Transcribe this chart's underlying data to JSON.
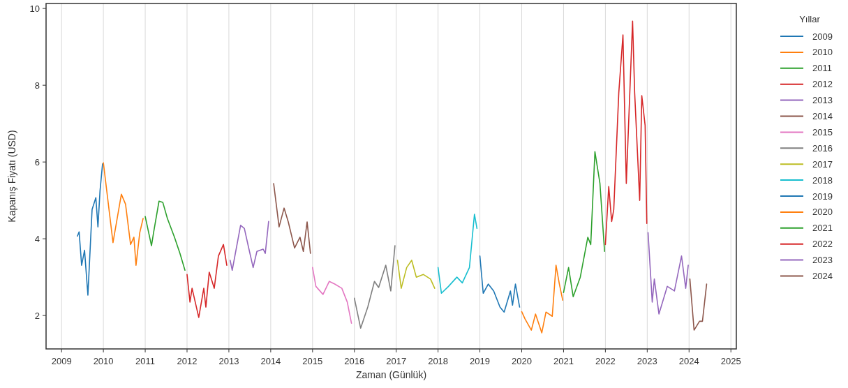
{
  "chart_data": {
    "type": "line",
    "xlabel": "Zaman (Günlük)",
    "ylabel": "Kapanış Fiyatı (USD)",
    "legend_title": "Yıllar",
    "legend": "right",
    "grid": "x",
    "xlim": [
      2008.63,
      2025.13
    ],
    "xticks": [
      2009,
      2010,
      2011,
      2012,
      2013,
      2014,
      2015,
      2016,
      2017,
      2018,
      2019,
      2020,
      2021,
      2022,
      2023,
      2024,
      2025
    ],
    "ylim": [
      1.13,
      10.13
    ],
    "yticks": [
      2,
      4,
      6,
      8,
      10
    ],
    "series": [
      {
        "name": "2009",
        "color": "#1f77b4",
        "x": [
          2009.38,
          2009.42,
          2009.48,
          2009.55,
          2009.63,
          2009.73,
          2009.82,
          2009.87,
          2009.92,
          2009.98
        ],
        "values": [
          4.07,
          4.18,
          3.31,
          3.7,
          2.53,
          4.76,
          5.07,
          4.31,
          5.25,
          5.95
        ]
      },
      {
        "name": "2010",
        "color": "#ff7f0e",
        "x": [
          2010.0,
          2010.23,
          2010.43,
          2010.53,
          2010.65,
          2010.73,
          2010.78,
          2010.87,
          2010.95
        ],
        "values": [
          5.98,
          3.9,
          5.16,
          4.9,
          3.85,
          4.04,
          3.31,
          4.16,
          4.53
        ]
      },
      {
        "name": "2011",
        "color": "#2ca02c",
        "x": [
          2011.0,
          2011.15,
          2011.2,
          2011.33,
          2011.42,
          2011.53,
          2011.7,
          2011.83,
          2011.95
        ],
        "values": [
          4.58,
          3.82,
          4.16,
          4.98,
          4.95,
          4.53,
          4.04,
          3.62,
          3.18
        ]
      },
      {
        "name": "2012",
        "color": "#d62728",
        "x": [
          2012.0,
          2012.07,
          2012.12,
          2012.28,
          2012.4,
          2012.45,
          2012.53,
          2012.65,
          2012.75,
          2012.87,
          2012.95
        ],
        "values": [
          3.07,
          2.35,
          2.71,
          1.95,
          2.71,
          2.22,
          3.13,
          2.71,
          3.55,
          3.85,
          3.31
        ]
      },
      {
        "name": "2013",
        "color": "#9467bd",
        "x": [
          2013.03,
          2013.08,
          2013.28,
          2013.37,
          2013.48,
          2013.58,
          2013.67,
          2013.82,
          2013.87,
          2013.95
        ],
        "values": [
          3.44,
          3.18,
          4.35,
          4.27,
          3.73,
          3.25,
          3.67,
          3.73,
          3.62,
          4.45
        ]
      },
      {
        "name": "2014",
        "color": "#8c564b",
        "x": [
          2014.07,
          2014.2,
          2014.32,
          2014.42,
          2014.57,
          2014.7,
          2014.78,
          2014.87,
          2014.95
        ],
        "values": [
          5.44,
          4.31,
          4.8,
          4.44,
          3.76,
          4.04,
          3.67,
          4.44,
          3.62
        ]
      },
      {
        "name": "2015",
        "color": "#e377c2",
        "x": [
          2015.0,
          2015.08,
          2015.25,
          2015.4,
          2015.53,
          2015.7,
          2015.83,
          2015.93
        ],
        "values": [
          3.25,
          2.76,
          2.55,
          2.89,
          2.82,
          2.71,
          2.35,
          1.8
        ]
      },
      {
        "name": "2016",
        "color": "#7f7f7f",
        "x": [
          2016.0,
          2016.15,
          2016.32,
          2016.48,
          2016.58,
          2016.75,
          2016.87,
          2016.97
        ],
        "values": [
          2.45,
          1.67,
          2.22,
          2.89,
          2.73,
          3.31,
          2.64,
          3.82
        ]
      },
      {
        "name": "2017",
        "color": "#bcbd22",
        "x": [
          2017.03,
          2017.12,
          2017.25,
          2017.37,
          2017.48,
          2017.65,
          2017.82,
          2017.92
        ],
        "values": [
          3.44,
          2.71,
          3.25,
          3.44,
          3.0,
          3.07,
          2.95,
          2.71
        ]
      },
      {
        "name": "2018",
        "color": "#17becf",
        "x": [
          2018.0,
          2018.08,
          2018.25,
          2018.45,
          2018.58,
          2018.75,
          2018.87,
          2018.93
        ],
        "values": [
          3.25,
          2.58,
          2.76,
          3.0,
          2.85,
          3.25,
          4.64,
          4.27
        ]
      },
      {
        "name": "2019",
        "color": "#1f77b4",
        "x": [
          2019.0,
          2019.08,
          2019.2,
          2019.33,
          2019.48,
          2019.58,
          2019.73,
          2019.78,
          2019.85,
          2019.95
        ],
        "values": [
          3.55,
          2.58,
          2.82,
          2.64,
          2.22,
          2.09,
          2.64,
          2.27,
          2.82,
          2.22
        ]
      },
      {
        "name": "2020",
        "color": "#ff7f0e",
        "x": [
          2020.0,
          2020.08,
          2020.23,
          2020.33,
          2020.48,
          2020.58,
          2020.73,
          2020.82,
          2020.9,
          2020.98
        ],
        "values": [
          2.1,
          1.91,
          1.62,
          2.04,
          1.55,
          2.09,
          1.98,
          3.31,
          2.82,
          2.4
        ]
      },
      {
        "name": "2021",
        "color": "#2ca02c",
        "x": [
          2021.0,
          2021.12,
          2021.23,
          2021.4,
          2021.58,
          2021.65,
          2021.75,
          2021.87,
          2021.98
        ],
        "values": [
          2.6,
          3.25,
          2.49,
          3.0,
          4.04,
          3.85,
          6.27,
          5.44,
          3.67
        ]
      },
      {
        "name": "2022",
        "color": "#d62728",
        "x": [
          2022.0,
          2022.08,
          2022.15,
          2022.2,
          2022.32,
          2022.42,
          2022.5,
          2022.65,
          2022.7,
          2022.82,
          2022.87,
          2022.95,
          2022.99
        ],
        "values": [
          3.85,
          5.36,
          4.45,
          4.76,
          7.8,
          9.31,
          5.44,
          9.67,
          7.8,
          5.0,
          7.73,
          6.95,
          4.4
        ]
      },
      {
        "name": "2023",
        "color": "#9467bd",
        "x": [
          2023.02,
          2023.12,
          2023.17,
          2023.28,
          2023.48,
          2023.65,
          2023.82,
          2023.92,
          2023.98
        ],
        "values": [
          4.16,
          2.35,
          2.95,
          2.04,
          2.76,
          2.64,
          3.55,
          2.71,
          3.31
        ]
      },
      {
        "name": "2024",
        "color": "#8c564b",
        "x": [
          2024.02,
          2024.12,
          2024.25,
          2024.32,
          2024.42
        ],
        "values": [
          2.95,
          1.62,
          1.85,
          1.85,
          2.82
        ]
      }
    ]
  }
}
